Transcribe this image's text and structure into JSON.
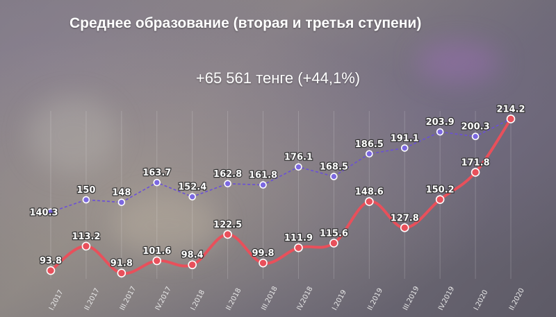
{
  "title": "Среднее образование (вторая и третья ступени)",
  "subtitle": "+65 561 тенге (+44,1%)",
  "chart_data": {
    "type": "line",
    "categories": [
      "I.2017",
      "II.2017",
      "III.2017",
      "IV.2017",
      "I.2018",
      "II.2018",
      "III.2018",
      "IV.2018",
      "I.2019",
      "II.2019",
      "III.2019",
      "IV.2019",
      "I.2020",
      "II.2020"
    ],
    "series": [
      {
        "values": [
          140.3,
          150,
          148,
          163.7,
          152.4,
          162.8,
          161.8,
          176.1,
          168.5,
          186.5,
          191.1,
          203.9,
          200.3,
          214.2
        ],
        "color": "#6a4fd8",
        "style": "dashed",
        "smooth": false
      },
      {
        "values": [
          93.8,
          113.2,
          91.8,
          101.6,
          98.4,
          122.5,
          99.8,
          111.9,
          115.6,
          148.6,
          127.8,
          150.2,
          171.8,
          214.2
        ],
        "color": "#e8505b",
        "style": "solid",
        "smooth": true
      }
    ],
    "ylim": [
      90,
      215
    ],
    "grid": "vertical",
    "legend": "none"
  }
}
